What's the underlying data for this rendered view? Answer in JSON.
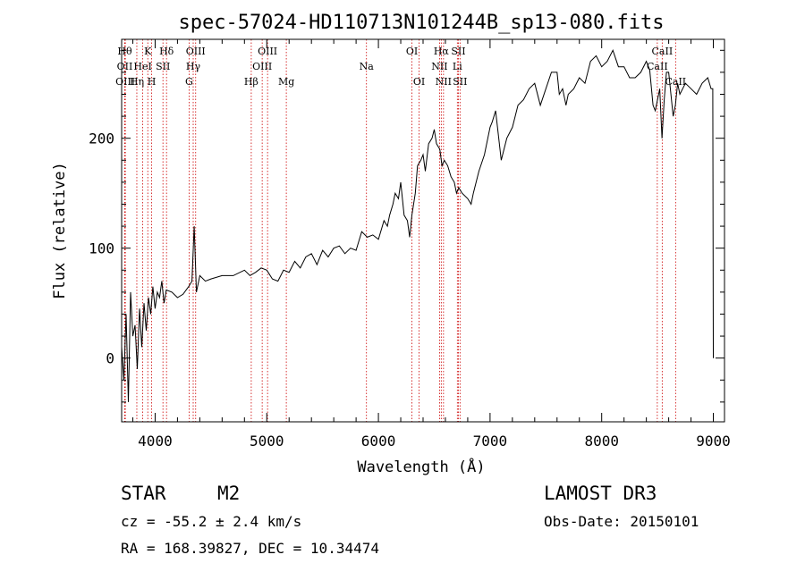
{
  "chart_data": {
    "type": "line",
    "title": "spec-57024-HD110713N101244B_sp13-080.fits",
    "xlabel": "Wavelength (Å)",
    "ylabel": "Flux (relative)",
    "xlim": [
      3700,
      9100
    ],
    "ylim": [
      -58,
      290
    ],
    "xticks": [
      {
        "value": 4000,
        "label": "4000"
      },
      {
        "value": 5000,
        "label": "5000"
      },
      {
        "value": 6000,
        "label": "6000"
      },
      {
        "value": 7000,
        "label": "7000"
      },
      {
        "value": 8000,
        "label": "8000"
      },
      {
        "value": 9000,
        "label": "9000"
      }
    ],
    "yticks": [
      {
        "value": 0,
        "label": "0"
      },
      {
        "value": 100,
        "label": "100"
      },
      {
        "value": 200,
        "label": "200"
      }
    ],
    "series": [
      {
        "color": "#000000",
        "x": [
          3700,
          3720,
          3740,
          3760,
          3780,
          3800,
          3820,
          3840,
          3860,
          3880,
          3900,
          3920,
          3940,
          3960,
          3980,
          4000,
          4020,
          4040,
          4060,
          4080,
          4100,
          4150,
          4200,
          4250,
          4300,
          4330,
          4350,
          4370,
          4400,
          4450,
          4500,
          4600,
          4700,
          4800,
          4850,
          4900,
          4950,
          5000,
          5050,
          5100,
          5150,
          5200,
          5250,
          5300,
          5350,
          5400,
          5450,
          5500,
          5550,
          5600,
          5650,
          5700,
          5750,
          5800,
          5850,
          5900,
          5950,
          6000,
          6050,
          6080,
          6100,
          6130,
          6150,
          6180,
          6200,
          6230,
          6260,
          6280,
          6300,
          6330,
          6350,
          6380,
          6400,
          6420,
          6450,
          6480,
          6500,
          6520,
          6550,
          6570,
          6590,
          6620,
          6650,
          6680,
          6700,
          6720,
          6750,
          6800,
          6830,
          6850,
          6900,
          6950,
          7000,
          7020,
          7050,
          7100,
          7150,
          7200,
          7250,
          7300,
          7350,
          7400,
          7450,
          7500,
          7550,
          7600,
          7620,
          7650,
          7680,
          7700,
          7750,
          7800,
          7850,
          7900,
          7950,
          8000,
          8050,
          8100,
          8150,
          8200,
          8250,
          8300,
          8350,
          8400,
          8430,
          8460,
          8480,
          8500,
          8520,
          8540,
          8560,
          8580,
          8600,
          8620,
          8640,
          8660,
          8680,
          8700,
          8750,
          8800,
          8850,
          8900,
          8950,
          8980,
          8995,
          9000
        ],
        "y": [
          10,
          -20,
          40,
          -40,
          60,
          20,
          30,
          -10,
          45,
          10,
          50,
          25,
          55,
          40,
          65,
          45,
          60,
          55,
          70,
          50,
          62,
          60,
          55,
          58,
          65,
          70,
          120,
          60,
          75,
          70,
          72,
          75,
          75,
          80,
          75,
          78,
          82,
          80,
          72,
          70,
          80,
          78,
          88,
          82,
          92,
          95,
          85,
          98,
          92,
          100,
          102,
          95,
          100,
          98,
          115,
          110,
          112,
          108,
          125,
          120,
          130,
          140,
          150,
          145,
          160,
          130,
          125,
          110,
          130,
          150,
          175,
          180,
          185,
          170,
          195,
          200,
          208,
          195,
          190,
          175,
          180,
          175,
          165,
          160,
          150,
          155,
          150,
          145,
          140,
          150,
          170,
          185,
          210,
          215,
          225,
          180,
          200,
          210,
          230,
          235,
          245,
          250,
          230,
          245,
          260,
          260,
          240,
          245,
          230,
          240,
          245,
          255,
          250,
          270,
          275,
          265,
          270,
          280,
          265,
          265,
          255,
          255,
          260,
          270,
          262,
          230,
          225,
          235,
          245,
          200,
          235,
          260,
          260,
          240,
          220,
          230,
          250,
          240,
          250,
          245,
          240,
          250,
          255,
          245,
          245,
          0
        ]
      }
    ],
    "line_labels": [
      {
        "x": 3728,
        "row": 0,
        "label": "Hθ"
      },
      {
        "x": 3728,
        "row": 1,
        "label": "OII"
      },
      {
        "x": 3733,
        "row": 2,
        "label": "OIII"
      },
      {
        "x": 3836,
        "row": 2,
        "label": "Hη"
      },
      {
        "x": 3889,
        "row": 1,
        "label": "HeI"
      },
      {
        "x": 3934,
        "row": 0,
        "label": "K"
      },
      {
        "x": 3969,
        "row": 2,
        "label": "H"
      },
      {
        "x": 4070,
        "row": 1,
        "label": "SII"
      },
      {
        "x": 4102,
        "row": 0,
        "label": "Hδ"
      },
      {
        "x": 4304,
        "row": 2,
        "label": "G"
      },
      {
        "x": 4341,
        "row": 1,
        "label": "Hγ"
      },
      {
        "x": 4363,
        "row": 0,
        "label": "OIII"
      },
      {
        "x": 4861,
        "row": 2,
        "label": "Hβ"
      },
      {
        "x": 4959,
        "row": 1,
        "label": "OIII"
      },
      {
        "x": 5007,
        "row": 0,
        "label": "OIII"
      },
      {
        "x": 5175,
        "row": 2,
        "label": "Mg"
      },
      {
        "x": 5893,
        "row": 1,
        "label": "Na"
      },
      {
        "x": 6300,
        "row": 0,
        "label": "OI"
      },
      {
        "x": 6364,
        "row": 2,
        "label": "OI"
      },
      {
        "x": 6548,
        "row": 1,
        "label": "NII"
      },
      {
        "x": 6563,
        "row": 0,
        "label": "Hα"
      },
      {
        "x": 6583,
        "row": 2,
        "label": "NII"
      },
      {
        "x": 6707,
        "row": 1,
        "label": "Li"
      },
      {
        "x": 6716,
        "row": 0,
        "label": "SII"
      },
      {
        "x": 6731,
        "row": 2,
        "label": "SII"
      },
      {
        "x": 8498,
        "row": 1,
        "label": "CaII"
      },
      {
        "x": 8542,
        "row": 0,
        "label": "CaII"
      },
      {
        "x": 8662,
        "row": 2,
        "label": "CaII"
      }
    ],
    "line_color": "#cc0000",
    "grid": false,
    "legend": "none"
  },
  "info": {
    "object_class": "STAR",
    "subclass": "M2",
    "survey": "LAMOST DR3",
    "cz": "cz = -55.2 ± 2.4 km/s",
    "obs_date": "Obs-Date: 20150101",
    "coords": "RA = 168.39827, DEC =  10.34474"
  }
}
